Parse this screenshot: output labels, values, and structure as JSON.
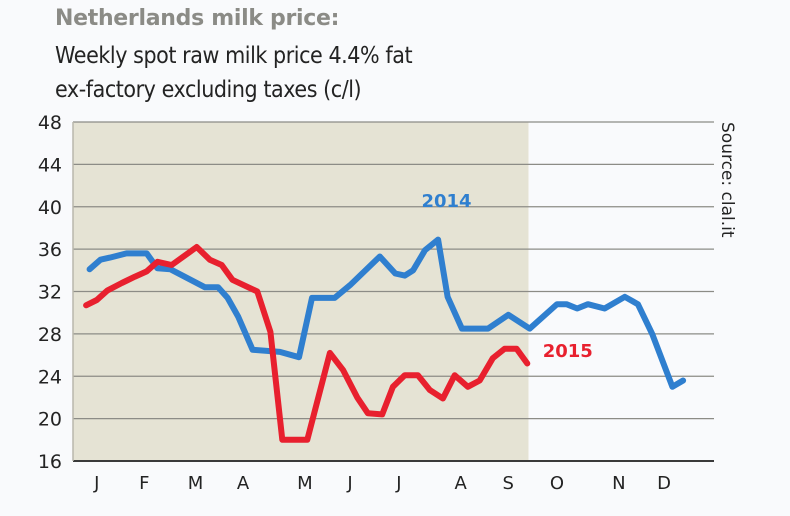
{
  "chart_data": {
    "type": "line",
    "title": "Netherlands milk price:",
    "subtitle_lines": [
      "Weekly spot raw milk price 4.4% fat",
      "ex-factory excluding taxes (c/l)"
    ],
    "xlabel": "",
    "ylabel": "",
    "source": "Source: clal.it",
    "x_unit": "week of year",
    "xlim": [
      0,
      53.9
    ],
    "ylim": [
      16,
      48
    ],
    "yticks": [
      16,
      20,
      24,
      28,
      32,
      36,
      40,
      44,
      48
    ],
    "grid": true,
    "shaded_period_end_week": 38.3,
    "month_ticks": [
      {
        "label": "J",
        "week": 2.0
      },
      {
        "label": "F",
        "week": 6.0
      },
      {
        "label": "M",
        "week": 10.3
      },
      {
        "label": "A",
        "week": 14.3
      },
      {
        "label": "M",
        "week": 19.5
      },
      {
        "label": "J",
        "week": 23.3
      },
      {
        "label": "J",
        "week": 27.4
      },
      {
        "label": "A",
        "week": 32.6
      },
      {
        "label": "S",
        "week": 36.6
      },
      {
        "label": "O",
        "week": 40.7
      },
      {
        "label": "N",
        "week": 45.9
      },
      {
        "label": "D",
        "week": 49.7
      }
    ],
    "series": [
      {
        "name": "2014",
        "color": "#2f7fcf",
        "label_anchor": {
          "week": 29.3,
          "value": 40.0
        },
        "points": [
          [
            1.4,
            34.1
          ],
          [
            2.3,
            35.0
          ],
          [
            3.1,
            35.2
          ],
          [
            4.5,
            35.6
          ],
          [
            6.2,
            35.6
          ],
          [
            7.1,
            34.2
          ],
          [
            8.2,
            34.1
          ],
          [
            11.1,
            32.4
          ],
          [
            12.2,
            32.4
          ],
          [
            13.0,
            31.4
          ],
          [
            13.9,
            29.6
          ],
          [
            15.1,
            26.5
          ],
          [
            17.4,
            26.3
          ],
          [
            19.0,
            25.8
          ],
          [
            20.1,
            31.4
          ],
          [
            22.0,
            31.4
          ],
          [
            23.3,
            32.6
          ],
          [
            25.8,
            35.3
          ],
          [
            27.1,
            33.7
          ],
          [
            27.9,
            33.5
          ],
          [
            28.6,
            34.0
          ],
          [
            29.6,
            35.9
          ],
          [
            30.7,
            36.9
          ],
          [
            31.5,
            31.5
          ],
          [
            32.7,
            28.5
          ],
          [
            34.9,
            28.5
          ],
          [
            36.6,
            29.8
          ],
          [
            38.4,
            28.5
          ],
          [
            40.7,
            30.8
          ],
          [
            41.5,
            30.8
          ],
          [
            42.4,
            30.4
          ],
          [
            43.3,
            30.8
          ],
          [
            44.7,
            30.4
          ],
          [
            46.4,
            31.5
          ],
          [
            47.5,
            30.8
          ],
          [
            48.7,
            28.0
          ],
          [
            50.4,
            23.0
          ],
          [
            51.3,
            23.6
          ]
        ]
      },
      {
        "name": "2015",
        "color": "#e8202e",
        "label_anchor": {
          "week": 39.5,
          "value": 25.8
        },
        "points": [
          [
            1.1,
            30.7
          ],
          [
            2.0,
            31.2
          ],
          [
            2.9,
            32.1
          ],
          [
            4.1,
            32.8
          ],
          [
            5.2,
            33.4
          ],
          [
            6.2,
            33.9
          ],
          [
            7.1,
            34.8
          ],
          [
            8.3,
            34.5
          ],
          [
            10.4,
            36.2
          ],
          [
            11.5,
            35.0
          ],
          [
            12.5,
            34.5
          ],
          [
            13.4,
            33.1
          ],
          [
            15.5,
            32.0
          ],
          [
            16.6,
            28.2
          ],
          [
            17.6,
            18.0
          ],
          [
            19.7,
            18.0
          ],
          [
            21.6,
            26.2
          ],
          [
            22.7,
            24.6
          ],
          [
            23.9,
            22.0
          ],
          [
            24.8,
            20.5
          ],
          [
            26.0,
            20.4
          ],
          [
            26.9,
            23.0
          ],
          [
            27.9,
            24.1
          ],
          [
            29.0,
            24.1
          ],
          [
            30.0,
            22.7
          ],
          [
            31.1,
            21.9
          ],
          [
            32.1,
            24.1
          ],
          [
            33.2,
            23.0
          ],
          [
            34.2,
            23.6
          ],
          [
            35.3,
            25.7
          ],
          [
            36.3,
            26.6
          ],
          [
            37.3,
            26.6
          ],
          [
            38.2,
            25.2
          ]
        ]
      }
    ],
    "colors": {
      "shaded_fill": "#e5e3d4",
      "gridline": "#8c8c86",
      "axis": "#3a3a3a",
      "title": "#8b8b86",
      "text": "#232323"
    }
  }
}
